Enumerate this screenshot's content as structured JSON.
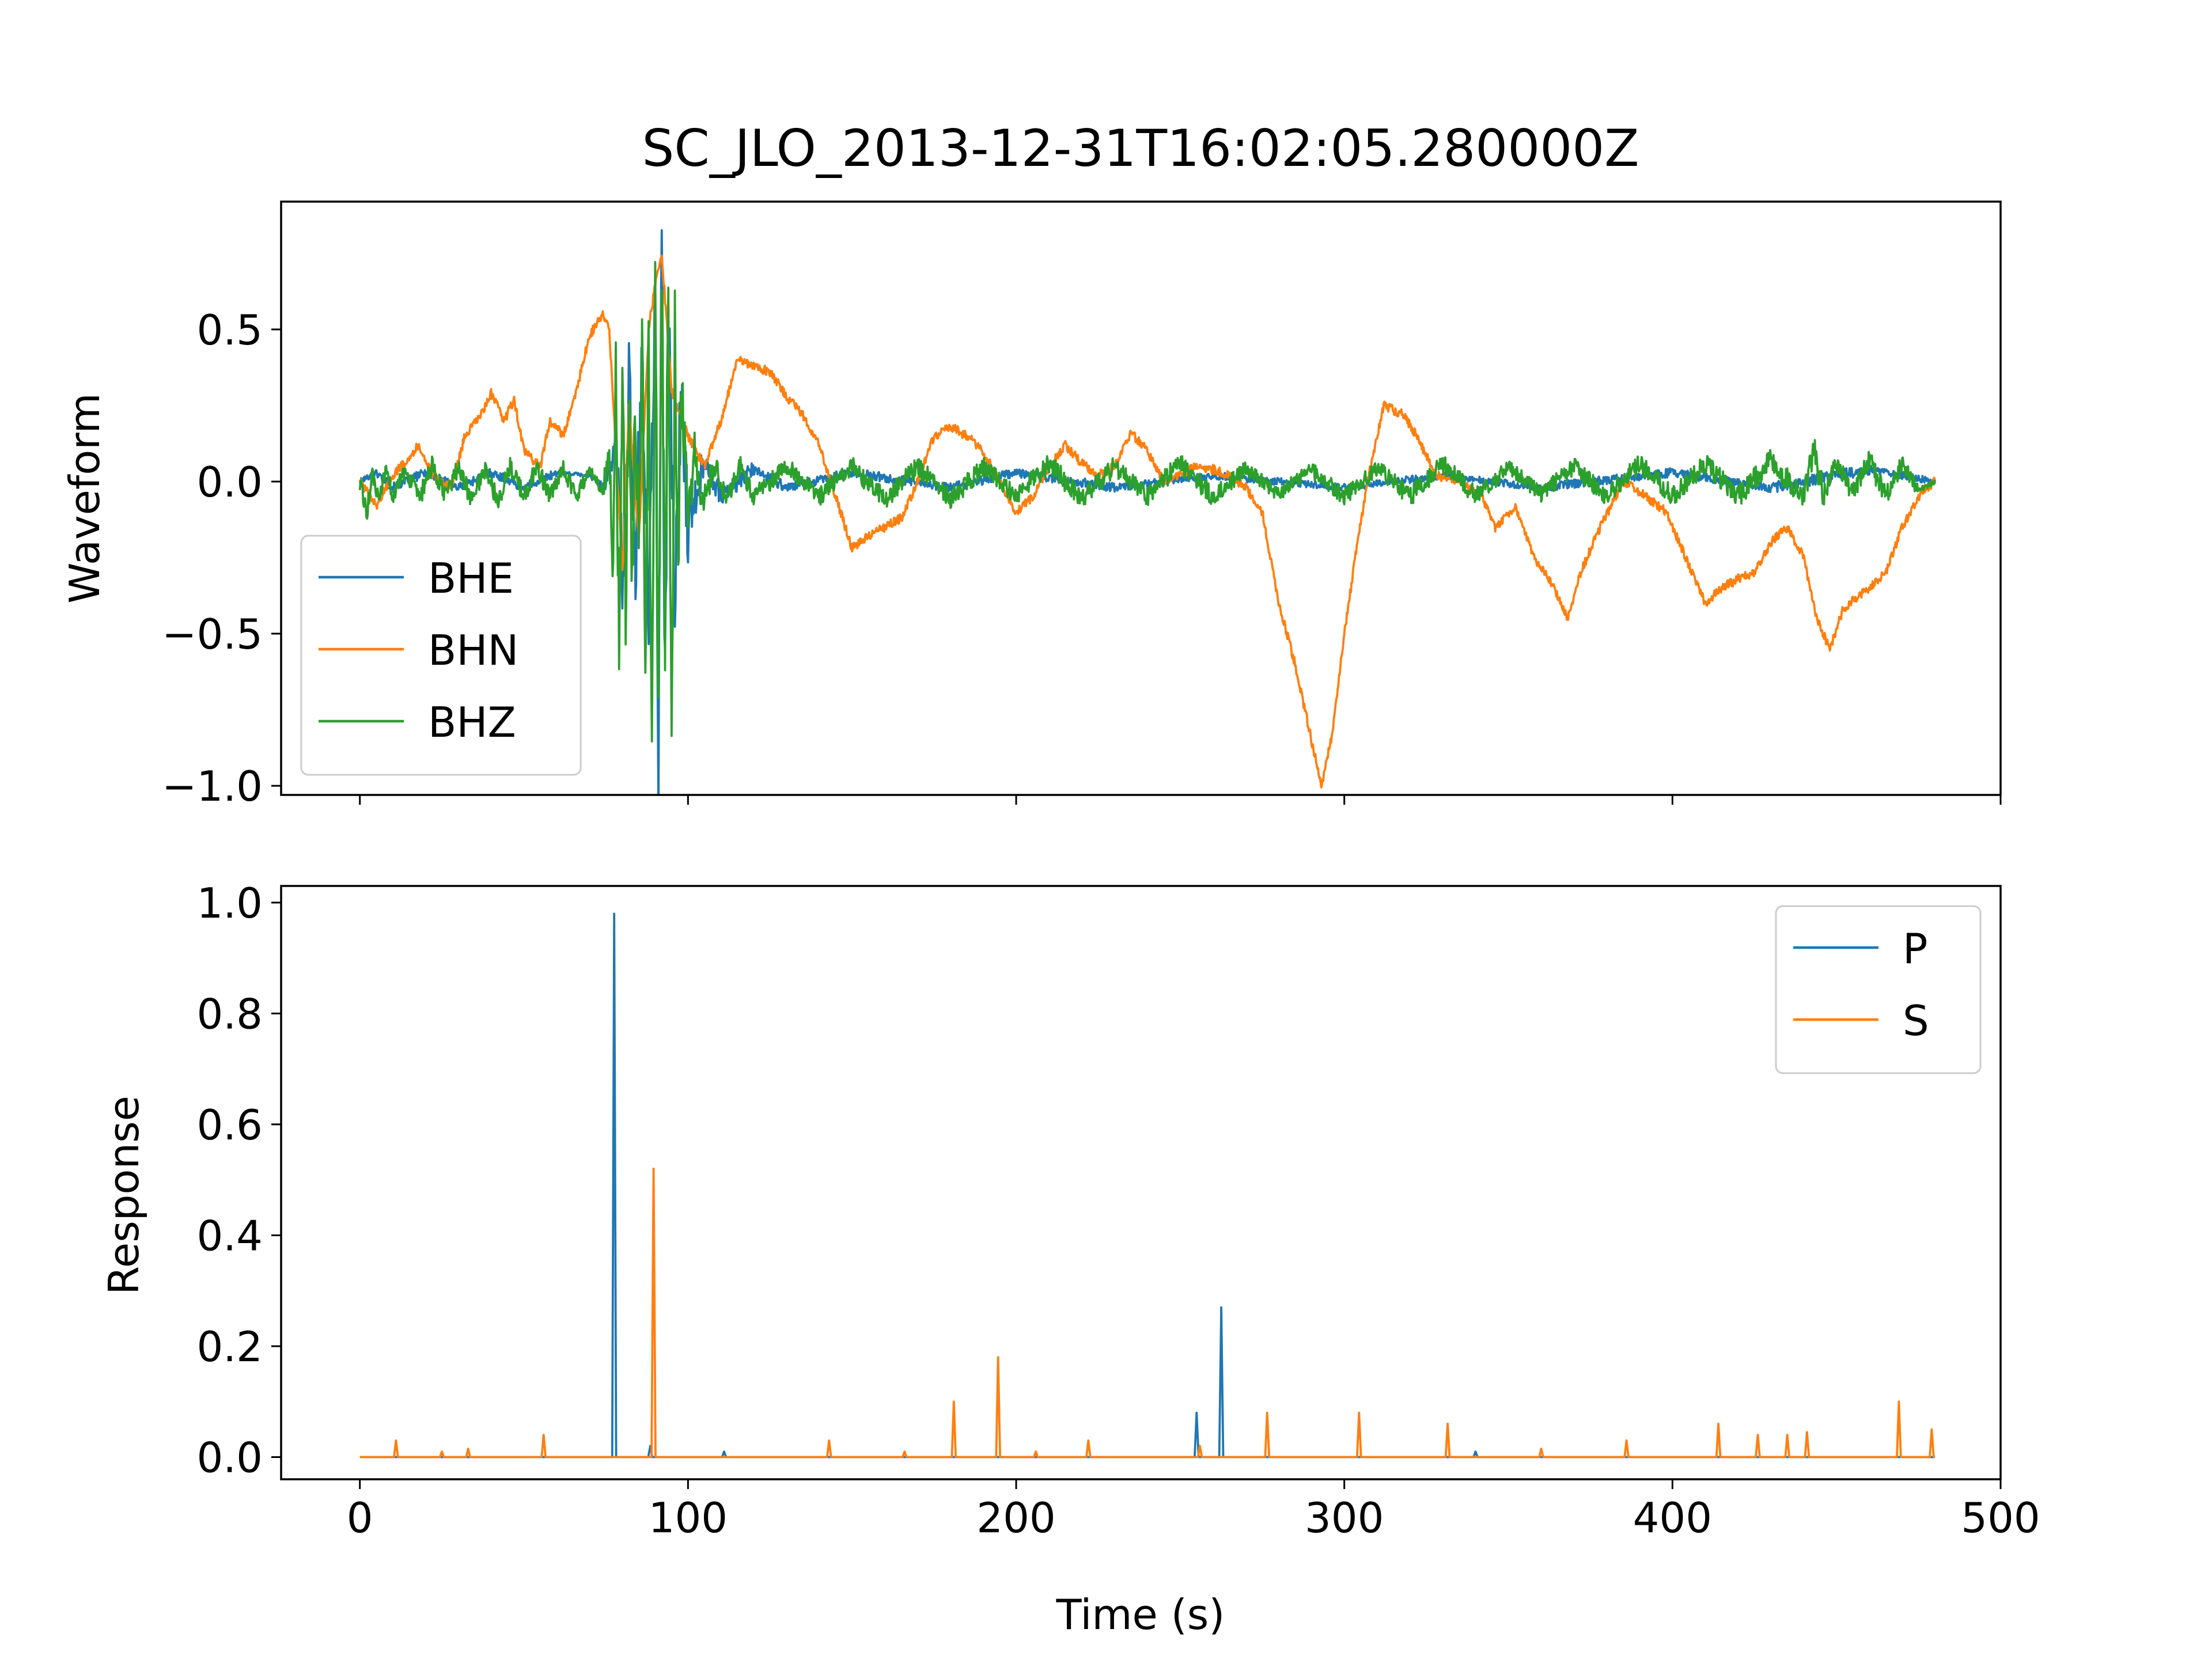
{
  "figure": {
    "title": "SC_JLO_2013-12-31T16:02:05.280000Z"
  },
  "chart_data": [
    {
      "type": "line",
      "panel": "top",
      "ylabel": "Waveform",
      "xlabel": "",
      "xlim": [
        -24,
        500
      ],
      "ylim": [
        -1.03,
        0.92
      ],
      "xticks": [
        0,
        100,
        200,
        300,
        400,
        500
      ],
      "show_xtick_labels": false,
      "yticks": [
        -1.0,
        -0.5,
        0.0,
        0.5
      ],
      "ytick_labels": [
        "−1.0",
        "−0.5",
        "0.0",
        "0.5"
      ],
      "grid": false,
      "legend_position": "lower-left",
      "series": [
        {
          "name": "BHE",
          "color": "#1f77b4",
          "points": [
            [
              0,
              0.0
            ],
            [
              5,
              0.03
            ],
            [
              10,
              -0.02
            ],
            [
              20,
              0.03
            ],
            [
              30,
              -0.02
            ],
            [
              40,
              0.03
            ],
            [
              50,
              -0.02
            ],
            [
              60,
              0.03
            ],
            [
              70,
              0.02
            ],
            [
              75,
              -0.02
            ],
            [
              78,
              0.15
            ],
            [
              80,
              -0.3
            ],
            [
              82,
              0.3
            ],
            [
              84,
              -0.25
            ],
            [
              86,
              0.4
            ],
            [
              88,
              -0.45
            ],
            [
              90,
              0.6
            ],
            [
              91,
              -0.95
            ],
            [
              92,
              0.83
            ],
            [
              93,
              -0.7
            ],
            [
              94,
              0.55
            ],
            [
              96,
              -0.4
            ],
            [
              98,
              0.3
            ],
            [
              100,
              -0.15
            ],
            [
              105,
              0.08
            ],
            [
              110,
              -0.05
            ],
            [
              120,
              0.04
            ],
            [
              130,
              -0.02
            ],
            [
              150,
              0.03
            ],
            [
              180,
              -0.02
            ],
            [
              200,
              0.03
            ],
            [
              230,
              -0.02
            ],
            [
              260,
              0.02
            ],
            [
              300,
              -0.02
            ],
            [
              330,
              0.02
            ],
            [
              360,
              -0.02
            ],
            [
              400,
              0.03
            ],
            [
              430,
              -0.02
            ],
            [
              460,
              0.04
            ],
            [
              480,
              0.0
            ]
          ]
        },
        {
          "name": "BHN",
          "color": "#ff7f0e",
          "points": [
            [
              0,
              0.0
            ],
            [
              5,
              -0.08
            ],
            [
              10,
              0.02
            ],
            [
              15,
              0.08
            ],
            [
              18,
              0.12
            ],
            [
              22,
              0.02
            ],
            [
              28,
              -0.02
            ],
            [
              32,
              0.15
            ],
            [
              37,
              0.22
            ],
            [
              40,
              0.29
            ],
            [
              44,
              0.2
            ],
            [
              47,
              0.27
            ],
            [
              50,
              0.1
            ],
            [
              55,
              0.05
            ],
            [
              58,
              0.2
            ],
            [
              62,
              0.15
            ],
            [
              66,
              0.3
            ],
            [
              70,
              0.48
            ],
            [
              74,
              0.55
            ],
            [
              76,
              0.5
            ],
            [
              78,
              0.1
            ],
            [
              80,
              -0.3
            ],
            [
              82,
              0.25
            ],
            [
              85,
              -0.2
            ],
            [
              88,
              0.5
            ],
            [
              90,
              0.65
            ],
            [
              92,
              0.75
            ],
            [
              95,
              0.3
            ],
            [
              100,
              0.15
            ],
            [
              105,
              0.05
            ],
            [
              110,
              0.2
            ],
            [
              115,
              0.4
            ],
            [
              120,
              0.38
            ],
            [
              125,
              0.36
            ],
            [
              130,
              0.28
            ],
            [
              135,
              0.22
            ],
            [
              140,
              0.12
            ],
            [
              145,
              -0.05
            ],
            [
              150,
              -0.22
            ],
            [
              155,
              -0.18
            ],
            [
              160,
              -0.15
            ],
            [
              165,
              -0.12
            ],
            [
              170,
              0.0
            ],
            [
              175,
              0.15
            ],
            [
              180,
              0.18
            ],
            [
              185,
              0.15
            ],
            [
              190,
              0.1
            ],
            [
              195,
              0.0
            ],
            [
              200,
              -0.1
            ],
            [
              205,
              -0.05
            ],
            [
              210,
              0.05
            ],
            [
              215,
              0.12
            ],
            [
              220,
              0.06
            ],
            [
              225,
              0.02
            ],
            [
              230,
              0.05
            ],
            [
              235,
              0.16
            ],
            [
              240,
              0.1
            ],
            [
              245,
              0.0
            ],
            [
              250,
              0.02
            ],
            [
              255,
              0.05
            ],
            [
              260,
              0.04
            ],
            [
              265,
              0.02
            ],
            [
              270,
              -0.02
            ],
            [
              275,
              -0.1
            ],
            [
              280,
              -0.4
            ],
            [
              285,
              -0.6
            ],
            [
              290,
              -0.85
            ],
            [
              293,
              -1.0
            ],
            [
              296,
              -0.85
            ],
            [
              300,
              -0.5
            ],
            [
              304,
              -0.2
            ],
            [
              308,
              0.05
            ],
            [
              312,
              0.25
            ],
            [
              318,
              0.22
            ],
            [
              322,
              0.15
            ],
            [
              328,
              0.02
            ],
            [
              335,
              0.0
            ],
            [
              342,
              -0.05
            ],
            [
              346,
              -0.15
            ],
            [
              352,
              -0.08
            ],
            [
              358,
              -0.25
            ],
            [
              364,
              -0.35
            ],
            [
              368,
              -0.45
            ],
            [
              372,
              -0.3
            ],
            [
              378,
              -0.15
            ],
            [
              385,
              0.0
            ],
            [
              392,
              -0.05
            ],
            [
              398,
              -0.1
            ],
            [
              402,
              -0.2
            ],
            [
              406,
              -0.3
            ],
            [
              410,
              -0.4
            ],
            [
              415,
              -0.35
            ],
            [
              420,
              -0.32
            ],
            [
              425,
              -0.3
            ],
            [
              430,
              -0.2
            ],
            [
              435,
              -0.15
            ],
            [
              440,
              -0.25
            ],
            [
              444,
              -0.45
            ],
            [
              448,
              -0.55
            ],
            [
              452,
              -0.42
            ],
            [
              456,
              -0.38
            ],
            [
              460,
              -0.35
            ],
            [
              465,
              -0.3
            ],
            [
              470,
              -0.15
            ],
            [
              475,
              -0.05
            ],
            [
              480,
              0.0
            ]
          ]
        },
        {
          "name": "BHZ",
          "color": "#2ca02c",
          "points": [
            [
              0,
              0.0
            ],
            [
              2,
              -0.1
            ],
            [
              4,
              0.02
            ],
            [
              6,
              -0.08
            ],
            [
              8,
              0.05
            ],
            [
              10,
              -0.05
            ],
            [
              14,
              0.04
            ],
            [
              18,
              -0.06
            ],
            [
              22,
              0.05
            ],
            [
              26,
              -0.05
            ],
            [
              30,
              0.05
            ],
            [
              34,
              -0.06
            ],
            [
              38,
              0.04
            ],
            [
              42,
              -0.06
            ],
            [
              46,
              0.05
            ],
            [
              50,
              -0.05
            ],
            [
              54,
              0.05
            ],
            [
              58,
              -0.05
            ],
            [
              62,
              0.04
            ],
            [
              66,
              -0.05
            ],
            [
              70,
              0.04
            ],
            [
              74,
              -0.03
            ],
            [
              76,
              0.1
            ],
            [
              77,
              -0.3
            ],
            [
              78,
              0.42
            ],
            [
              79,
              -0.5
            ],
            [
              80,
              0.35
            ],
            [
              81,
              -0.4
            ],
            [
              82,
              0.3
            ],
            [
              83,
              -0.35
            ],
            [
              84,
              0.25
            ],
            [
              85,
              -0.3
            ],
            [
              86,
              0.45
            ],
            [
              87,
              -0.55
            ],
            [
              88,
              0.5
            ],
            [
              89,
              -0.92
            ],
            [
              90,
              0.68
            ],
            [
              91,
              -0.8
            ],
            [
              92,
              0.8
            ],
            [
              93,
              -0.5
            ],
            [
              94,
              0.6
            ],
            [
              95,
              -0.75
            ],
            [
              96,
              0.5
            ],
            [
              97,
              -0.4
            ],
            [
              98,
              0.3
            ],
            [
              100,
              -0.15
            ],
            [
              102,
              0.1
            ],
            [
              104,
              -0.1
            ],
            [
              108,
              0.06
            ],
            [
              112,
              -0.06
            ],
            [
              116,
              0.05
            ],
            [
              120,
              -0.05
            ],
            [
              130,
              0.05
            ],
            [
              140,
              -0.05
            ],
            [
              150,
              0.05
            ],
            [
              160,
              -0.06
            ],
            [
              170,
              0.05
            ],
            [
              180,
              -0.06
            ],
            [
              190,
              0.05
            ],
            [
              200,
              -0.05
            ],
            [
              210,
              0.06
            ],
            [
              220,
              -0.06
            ],
            [
              230,
              0.05
            ],
            [
              240,
              -0.05
            ],
            [
              250,
              0.06
            ],
            [
              260,
              -0.05
            ],
            [
              270,
              0.04
            ],
            [
              280,
              -0.04
            ],
            [
              290,
              0.04
            ],
            [
              300,
              -0.05
            ],
            [
              310,
              0.05
            ],
            [
              320,
              -0.05
            ],
            [
              330,
              0.06
            ],
            [
              340,
              -0.05
            ],
            [
              350,
              0.05
            ],
            [
              360,
              -0.04
            ],
            [
              370,
              0.05
            ],
            [
              380,
              -0.05
            ],
            [
              390,
              0.06
            ],
            [
              400,
              -0.05
            ],
            [
              410,
              0.06
            ],
            [
              420,
              -0.05
            ],
            [
              430,
              0.07
            ],
            [
              440,
              -0.06
            ],
            [
              443,
              0.12
            ],
            [
              446,
              -0.05
            ],
            [
              450,
              0.06
            ],
            [
              455,
              -0.04
            ],
            [
              460,
              0.07
            ],
            [
              465,
              -0.05
            ],
            [
              470,
              0.06
            ],
            [
              475,
              -0.03
            ],
            [
              480,
              0.0
            ]
          ]
        }
      ]
    },
    {
      "type": "line",
      "panel": "bottom",
      "ylabel": "Response",
      "xlabel": "Time (s)",
      "xlim": [
        -24,
        500
      ],
      "ylim": [
        -0.04,
        1.03
      ],
      "xticks": [
        0,
        100,
        200,
        300,
        400,
        500
      ],
      "xtick_labels": [
        "0",
        "100",
        "200",
        "300",
        "400",
        "500"
      ],
      "yticks": [
        0.0,
        0.2,
        0.4,
        0.6,
        0.8,
        1.0
      ],
      "ytick_labels": [
        "0.0",
        "0.2",
        "0.4",
        "0.6",
        "0.8",
        "1.0"
      ],
      "grid": false,
      "legend_position": "upper-right",
      "series": [
        {
          "name": "P",
          "color": "#1f77b4",
          "spikes": [
            [
              77.5,
              0.98
            ],
            [
              88.5,
              0.02
            ],
            [
              111,
              0.01
            ],
            [
              255,
              0.08
            ],
            [
              262.5,
              0.27
            ],
            [
              340,
              0.01
            ]
          ]
        },
        {
          "name": "S",
          "color": "#ff7f0e",
          "spikes": [
            [
              11,
              0.03
            ],
            [
              25,
              0.01
            ],
            [
              33,
              0.015
            ],
            [
              56,
              0.04
            ],
            [
              89.5,
              0.52
            ],
            [
              143,
              0.03
            ],
            [
              166,
              0.01
            ],
            [
              181,
              0.1
            ],
            [
              194.5,
              0.18
            ],
            [
              206,
              0.01
            ],
            [
              222,
              0.03
            ],
            [
              256,
              0.02
            ],
            [
              276.5,
              0.08
            ],
            [
              304.5,
              0.08
            ],
            [
              331.5,
              0.06
            ],
            [
              360,
              0.015
            ],
            [
              386,
              0.03
            ],
            [
              414,
              0.06
            ],
            [
              426,
              0.04
            ],
            [
              435,
              0.04
            ],
            [
              441,
              0.045
            ],
            [
              469,
              0.1
            ],
            [
              479,
              0.05
            ]
          ]
        }
      ]
    }
  ]
}
